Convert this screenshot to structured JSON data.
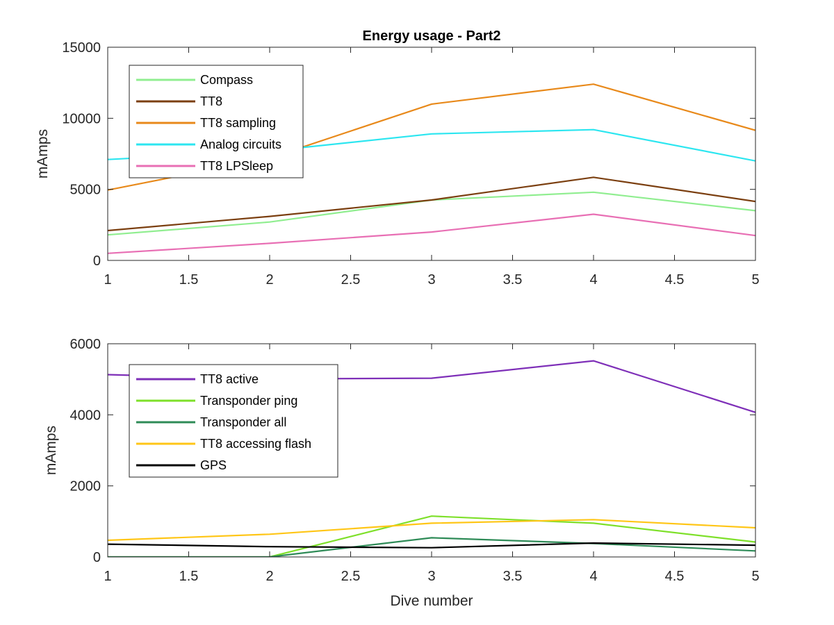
{
  "chart_data": [
    {
      "type": "line",
      "title": "Energy usage - Part2",
      "xlabel": "",
      "ylabel": "mAmps",
      "xlim": [
        1,
        5
      ],
      "ylim": [
        0,
        15000
      ],
      "xticks": [
        "1",
        "1.5",
        "2",
        "2.5",
        "3",
        "3.5",
        "4",
        "4.5",
        "5"
      ],
      "yticks": [
        "0",
        "5000",
        "10000",
        "15000"
      ],
      "legend_position": "top-left",
      "grid": false,
      "x": [
        1,
        2,
        3,
        4,
        5
      ],
      "series": [
        {
          "name": "Compass",
          "color": "#90ee90",
          "values": [
            1800,
            2700,
            4250,
            4800,
            3500
          ]
        },
        {
          "name": "TT8",
          "color": "#7b3f10",
          "values": [
            2100,
            3100,
            4250,
            5850,
            4150
          ]
        },
        {
          "name": "TT8 sampling",
          "color": "#e8891a",
          "values": [
            4950,
            7200,
            11000,
            12400,
            9150
          ]
        },
        {
          "name": "Analog circuits",
          "color": "#2ce6f0",
          "values": [
            7100,
            7700,
            8900,
            9200,
            7000
          ]
        },
        {
          "name": "TT8 LPSleep",
          "color": "#e86fb4",
          "values": [
            500,
            1200,
            2000,
            3250,
            1750
          ]
        }
      ]
    },
    {
      "type": "line",
      "title": "",
      "xlabel": "Dive number",
      "ylabel": "mAmps",
      "xlim": [
        1,
        5
      ],
      "ylim": [
        0,
        6000
      ],
      "xticks": [
        "1",
        "1.5",
        "2",
        "2.5",
        "3",
        "3.5",
        "4",
        "4.5",
        "5"
      ],
      "yticks": [
        "0",
        "2000",
        "4000",
        "6000"
      ],
      "legend_position": "top-left",
      "grid": false,
      "x": [
        1,
        2,
        3,
        4,
        5
      ],
      "series": [
        {
          "name": "TT8 active",
          "color": "#7e2fb8",
          "values": [
            5130,
            5010,
            5030,
            5520,
            4070
          ]
        },
        {
          "name": "Transponder ping",
          "color": "#7ee02a",
          "values": [
            0,
            0,
            1150,
            950,
            420
          ]
        },
        {
          "name": "Transponder all",
          "color": "#2e8b57",
          "values": [
            0,
            0,
            540,
            380,
            170
          ]
        },
        {
          "name": "TT8 accessing flash",
          "color": "#ffc617",
          "values": [
            470,
            640,
            950,
            1050,
            820
          ]
        },
        {
          "name": "GPS",
          "color": "#000000",
          "values": [
            360,
            290,
            260,
            390,
            330
          ]
        }
      ]
    }
  ]
}
